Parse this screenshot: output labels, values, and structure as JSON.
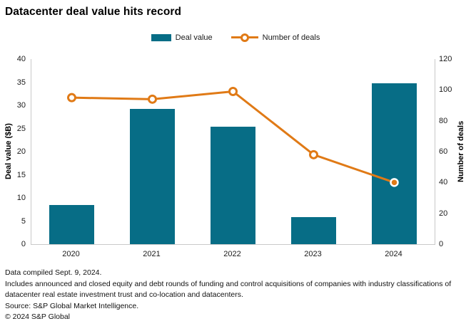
{
  "header": {
    "title": "Datacenter deal value hits record"
  },
  "legend": {
    "items": [
      {
        "label": "Deal value",
        "swatch": "bar"
      },
      {
        "label": "Number of deals",
        "swatch": "line-marker"
      }
    ]
  },
  "chart_data": {
    "type": "bar",
    "subtype": "combo-bar-line",
    "title": "Datacenter deal value hits record",
    "categories": [
      "2020",
      "2021",
      "2022",
      "2023",
      "2024"
    ],
    "series": [
      {
        "name": "Deal value",
        "type": "bar",
        "axis": "left",
        "color": "#076d86",
        "values": [
          8.4,
          29.3,
          25.4,
          5.9,
          34.8
        ]
      },
      {
        "name": "Number of deals",
        "type": "line",
        "axis": "right",
        "color": "#e07a16",
        "values": [
          95,
          94,
          99,
          58,
          40
        ],
        "last_point_highlighted": true
      }
    ],
    "left_axis": {
      "label": "Deal value ($B)",
      "min": 0,
      "max": 40,
      "ticks": [
        0,
        5,
        10,
        15,
        20,
        25,
        30,
        35,
        40
      ]
    },
    "right_axis": {
      "label": "Number of deals",
      "min": 0,
      "max": 120,
      "ticks": [
        0,
        20,
        40,
        60,
        80,
        100,
        120
      ]
    },
    "grid": false,
    "legend_position": "top-center"
  },
  "footer": {
    "lines": [
      "Data compiled Sept. 9, 2024.",
      "Includes announced and closed equity and debt rounds of funding and control acquisitions of companies with industry classifications of datacenter real estate investment trust and co-location and datacenters.",
      "Source: S&P Global Market Intelligence.",
      "© 2024 S&P Global"
    ]
  },
  "colors": {
    "bar_teal": "#076d86",
    "line_orange": "#e07a16",
    "axis_gray": "#c9c9c9",
    "text": "#1a1a1a"
  }
}
